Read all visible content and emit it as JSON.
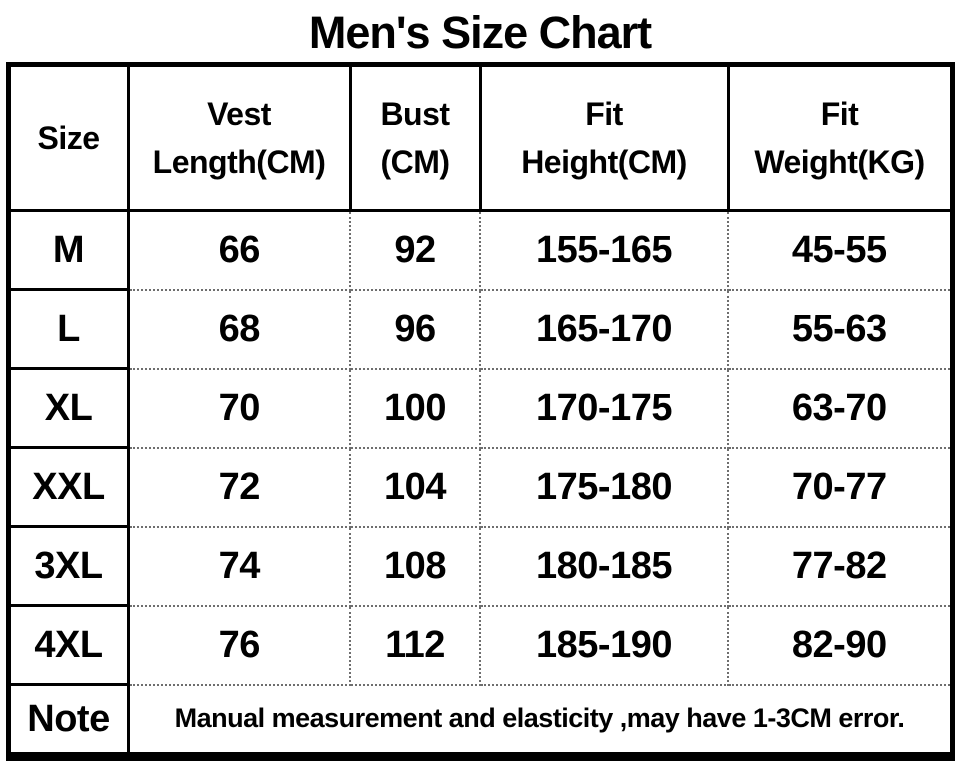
{
  "title": "Men's Size Chart",
  "colors": {
    "text": "#000000",
    "background": "#ffffff",
    "solid_border": "#000000",
    "dotted_border": "#6e6e6e"
  },
  "table": {
    "headers": {
      "size": "Size",
      "vest_line1": "Vest",
      "vest_line2": "Length(CM)",
      "bust_line1": "Bust",
      "bust_line2": "(CM)",
      "fit_height_line1": "Fit",
      "fit_height_line2": "Height(CM)",
      "fit_weight_line1": "Fit",
      "fit_weight_line2": "Weight(KG)"
    },
    "rows": [
      {
        "size": "M",
        "vest_length": "66",
        "bust": "92",
        "fit_height": "155-165",
        "fit_weight": "45-55"
      },
      {
        "size": "L",
        "vest_length": "68",
        "bust": "96",
        "fit_height": "165-170",
        "fit_weight": "55-63"
      },
      {
        "size": "XL",
        "vest_length": "70",
        "bust": "100",
        "fit_height": "170-175",
        "fit_weight": "63-70"
      },
      {
        "size": "XXL",
        "vest_length": "72",
        "bust": "104",
        "fit_height": "175-180",
        "fit_weight": "70-77"
      },
      {
        "size": "3XL",
        "vest_length": "74",
        "bust": "108",
        "fit_height": "180-185",
        "fit_weight": "77-82"
      },
      {
        "size": "4XL",
        "vest_length": "76",
        "bust": "112",
        "fit_height": "185-190",
        "fit_weight": "82-90"
      }
    ],
    "note": {
      "label": "Note",
      "text": "Manual measurement and elasticity ,may have 1-3CM error."
    }
  }
}
